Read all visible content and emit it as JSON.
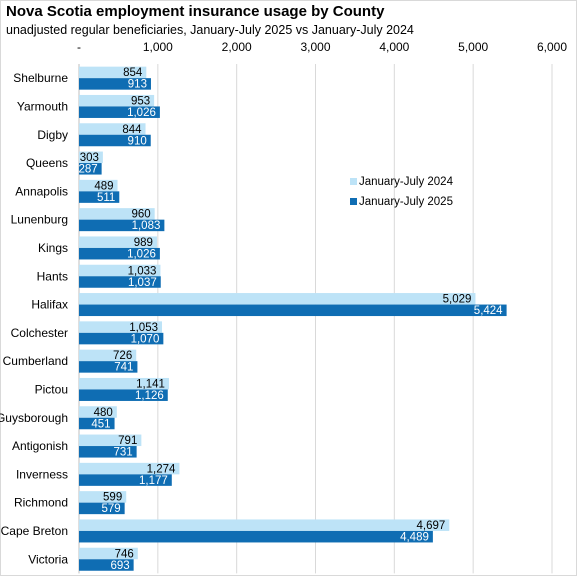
{
  "chart_data": {
    "type": "bar",
    "orientation": "horizontal",
    "title": "Nova Scotia employment insurance usage by County",
    "subtitle": "unadjusted regular beneficiaries,  January-July 2025 vs January-July 2024",
    "categories": [
      "Shelburne",
      "Yarmouth",
      "Digby",
      "Queens",
      "Annapolis",
      "Lunenburg",
      "Kings",
      "Hants",
      "Halifax",
      "Colchester",
      "Cumberland",
      "Pictou",
      "Guysborough",
      "Antigonish",
      "Inverness",
      "Richmond",
      "Cape Breton",
      "Victoria"
    ],
    "series": [
      {
        "name": "January-July 2024",
        "color": "#bde3f7",
        "values": [
          854,
          953,
          844,
          303,
          489,
          960,
          989,
          1033,
          5029,
          1053,
          726,
          1141,
          480,
          791,
          1274,
          599,
          4697,
          746
        ],
        "labels": [
          "854",
          "953",
          "844",
          "303",
          "489",
          "960",
          "989",
          "1,033",
          "5,029",
          "1,053",
          "726",
          "1,141",
          "480",
          "791",
          "1,274",
          "599",
          "4,697",
          "746"
        ]
      },
      {
        "name": "January-July 2025",
        "color": "#0f6db3",
        "values": [
          913,
          1026,
          910,
          287,
          511,
          1083,
          1026,
          1037,
          5424,
          1070,
          741,
          1126,
          451,
          731,
          1177,
          579,
          4489,
          693
        ],
        "labels": [
          "913",
          "1,026",
          "910",
          "287",
          "511",
          "1,083",
          "1,026",
          "1,037",
          "5,424",
          "1,070",
          "741",
          "1,126",
          "451",
          "731",
          "1,177",
          "579",
          "4,489",
          "693"
        ]
      }
    ],
    "xlim": [
      0,
      6000
    ],
    "xticks": [
      0,
      1000,
      2000,
      3000,
      4000,
      5000,
      6000
    ],
    "xtick_labels": [
      "-",
      "1,000",
      "2,000",
      "3,000",
      "4,000",
      "5,000",
      "6,000"
    ],
    "xaxis_position": "top",
    "grid": true,
    "legend_position": "right-middle"
  }
}
